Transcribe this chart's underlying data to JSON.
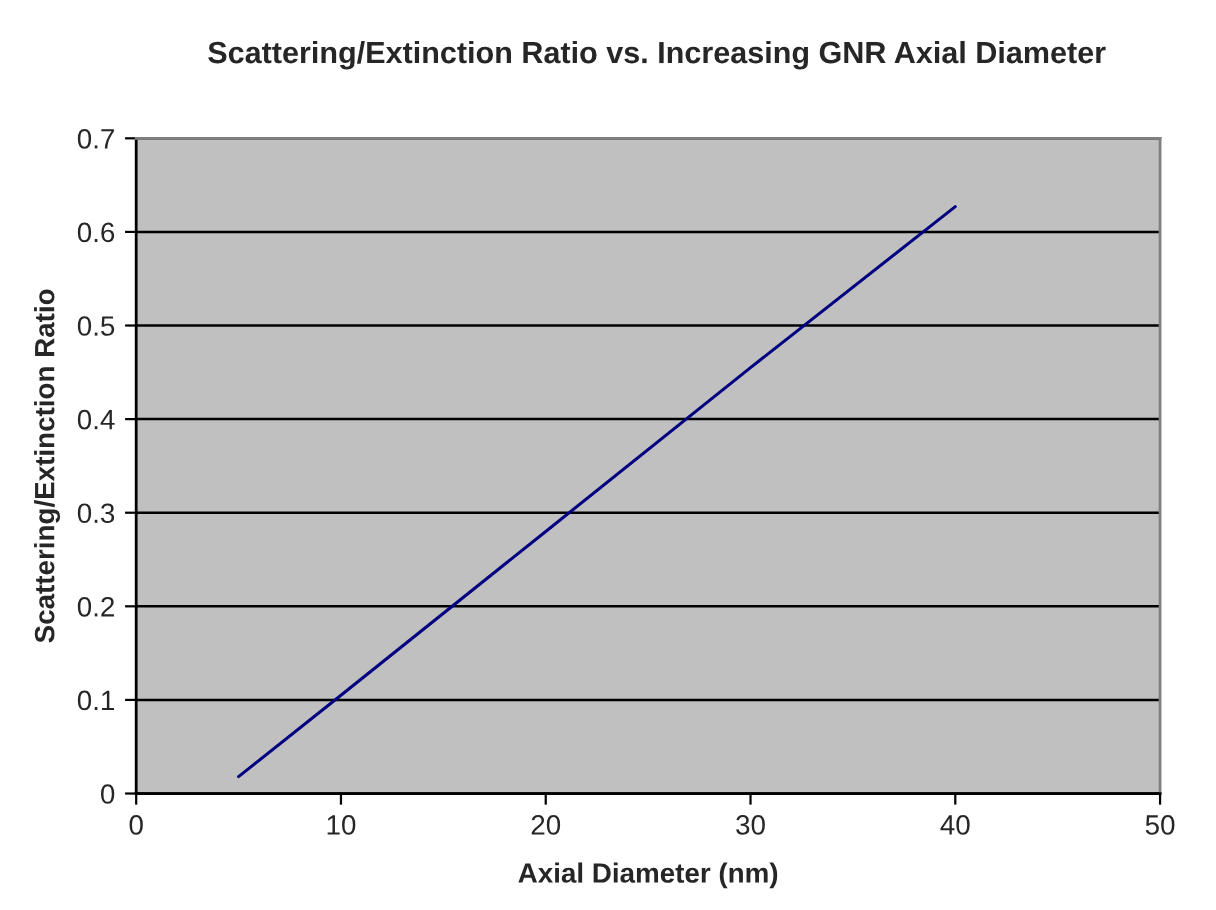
{
  "chart_data": {
    "type": "line",
    "title": "Scattering/Extinction Ratio vs. Increasing GNR Axial Diameter",
    "xlabel": "Axial Diameter (nm)",
    "ylabel": "Scattering/Extinction Ratio",
    "x": [
      5,
      10,
      20,
      30,
      40
    ],
    "series": [
      {
        "color": "#000080",
        "values": [
          0.018,
          0.105,
          0.28,
          0.455,
          0.627
        ]
      }
    ],
    "xlim": [
      0,
      50
    ],
    "xticks": [
      0,
      10,
      20,
      30,
      40,
      50
    ],
    "ylim": [
      0,
      0.7
    ],
    "yticks": [
      0,
      0.1,
      0.2,
      0.3,
      0.4,
      0.5,
      0.6,
      0.7
    ],
    "grid": "y",
    "marker": "none",
    "line_style": "solid"
  }
}
